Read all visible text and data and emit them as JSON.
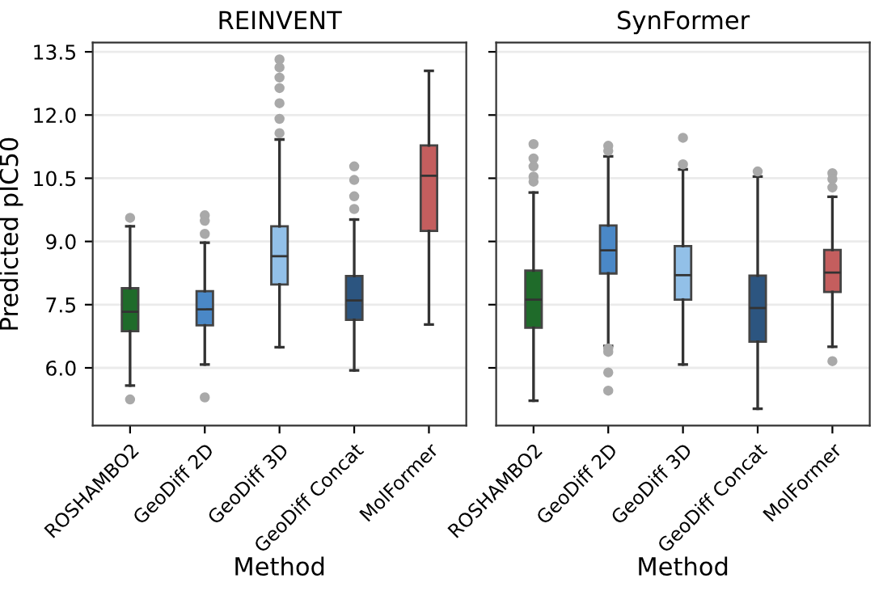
{
  "chart_data": [
    {
      "type": "box",
      "title": "REINVENT",
      "xlabel": "Method",
      "ylabel": "Predicted pIC50",
      "categories": [
        "ROSHAMBO2",
        "GeoDiff 2D",
        "GeoDiff 3D",
        "GeoDiff Concat",
        "MolFormer"
      ],
      "colors": [
        "#1f6b2a",
        "#4a88c7",
        "#92c0e8",
        "#2c5580",
        "#c45e5e"
      ],
      "boxes": [
        {
          "low": 5.58,
          "q1": 6.87,
          "median": 7.33,
          "q3": 7.89,
          "high": 9.36,
          "outliers": [
            9.56,
            5.25
          ]
        },
        {
          "low": 6.08,
          "q1": 7.01,
          "median": 7.39,
          "q3": 7.82,
          "high": 8.97,
          "outliers": [
            9.62,
            9.49,
            9.18,
            5.3
          ]
        },
        {
          "low": 6.49,
          "q1": 7.98,
          "median": 8.65,
          "q3": 9.36,
          "high": 11.42,
          "outliers": [
            11.57,
            11.91,
            12.28,
            12.64,
            12.89,
            13.13,
            13.32
          ]
        },
        {
          "low": 5.94,
          "q1": 7.14,
          "median": 7.6,
          "q3": 8.18,
          "high": 9.52,
          "outliers": [
            10.78,
            10.46,
            10.07,
            9.77
          ]
        },
        {
          "low": 7.03,
          "q1": 9.25,
          "median": 10.56,
          "q3": 11.28,
          "high": 13.05
        }
      ],
      "ylim": [
        4.63,
        13.72
      ],
      "yticks": [
        {
          "value": 6.0,
          "label": "6.0"
        },
        {
          "value": 7.5,
          "label": "7.5"
        },
        {
          "value": 9.0,
          "label": "9.0"
        },
        {
          "value": 10.5,
          "label": "10.5"
        },
        {
          "value": 12.0,
          "label": "12.0"
        },
        {
          "value": 13.5,
          "label": "13.5"
        }
      ],
      "grid": "y"
    },
    {
      "type": "box",
      "title": "SynFormer",
      "xlabel": "Method",
      "categories": [
        "ROSHAMBO2",
        "GeoDiff 2D",
        "GeoDiff 3D",
        "GeoDiff Concat",
        "MolFormer"
      ],
      "colors": [
        "#1f6b2a",
        "#4a88c7",
        "#92c0e8",
        "#2c5580",
        "#c45e5e"
      ],
      "boxes": [
        {
          "low": 5.22,
          "q1": 6.95,
          "median": 7.62,
          "q3": 8.31,
          "high": 10.16,
          "outliers": [
            11.31,
            10.97,
            10.78,
            10.54,
            10.42
          ]
        },
        {
          "low": 6.52,
          "q1": 8.24,
          "median": 8.79,
          "q3": 9.38,
          "high": 11.02,
          "outliers": [
            11.27,
            11.15,
            6.46,
            6.38,
            5.89,
            5.46
          ]
        },
        {
          "low": 6.08,
          "q1": 7.62,
          "median": 8.2,
          "q3": 8.89,
          "high": 10.71,
          "outliers": [
            11.46,
            10.83
          ]
        },
        {
          "low": 5.03,
          "q1": 6.62,
          "median": 7.42,
          "q3": 8.19,
          "high": 10.54,
          "outliers": [
            10.66
          ]
        },
        {
          "low": 6.5,
          "q1": 7.8,
          "median": 8.26,
          "q3": 8.8,
          "high": 10.06,
          "outliers": [
            10.62,
            10.48,
            10.28,
            6.16
          ]
        }
      ],
      "ylim": [
        4.63,
        13.72
      ],
      "yticks": [
        {
          "value": 6.0,
          "label": null
        },
        {
          "value": 7.5,
          "label": null
        },
        {
          "value": 9.0,
          "label": null
        },
        {
          "value": 10.5,
          "label": null
        },
        {
          "value": 12.0,
          "label": null
        },
        {
          "value": 13.5,
          "label": null
        }
      ],
      "grid": "y",
      "tick_labels": "x"
    }
  ]
}
